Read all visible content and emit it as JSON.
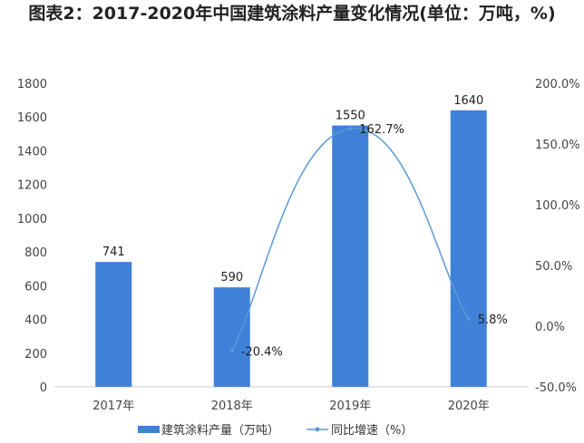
{
  "chart_data": {
    "type": "bar+line",
    "title": "图表2：2017-2020年中国建筑涂料产量变化情况(单位：万吨，%)",
    "categories": [
      "2017年",
      "2018年",
      "2019年",
      "2020年"
    ],
    "series": [
      {
        "name": "建筑涂料产量（万吨）",
        "type": "bar",
        "axis": "left",
        "values": [
          741,
          590,
          1550,
          1640
        ],
        "labels": [
          "741",
          "590",
          "1550",
          "1640"
        ],
        "color": "#3f80d8"
      },
      {
        "name": "同比增速（%）",
        "type": "line",
        "axis": "right",
        "values": [
          null,
          -20.4,
          162.7,
          5.8
        ],
        "labels": [
          "",
          "-20.4%",
          "162.7%",
          "5.8%"
        ],
        "color": "#5a9ad8"
      }
    ],
    "left_axis": {
      "range": [
        0,
        1800
      ],
      "ticks": [
        "0",
        "200",
        "400",
        "600",
        "800",
        "1000",
        "1200",
        "1400",
        "1600",
        "1800"
      ]
    },
    "right_axis": {
      "range": [
        -50,
        200
      ],
      "ticks": [
        "-50.0%",
        "0.0%",
        "50.0%",
        "100.0%",
        "150.0%",
        "200.0%"
      ]
    },
    "grid": false,
    "legend": "bottom"
  }
}
